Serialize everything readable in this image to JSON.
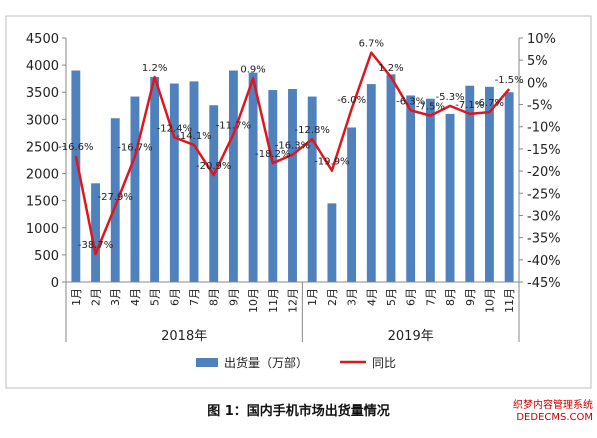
{
  "chart_data": {
    "type": "bar+line",
    "title": "图 1：国内手机市场出货量情况",
    "categories": [
      "1月",
      "2月",
      "3月",
      "4月",
      "5月",
      "6月",
      "7月",
      "8月",
      "9月",
      "10月",
      "11月",
      "12月",
      "1月",
      "2月",
      "3月",
      "4月",
      "5月",
      "6月",
      "7月",
      "8月",
      "9月",
      "10月",
      "11月"
    ],
    "year_groups": [
      {
        "label": "2018年",
        "count": 12
      },
      {
        "label": "2019年",
        "count": 11
      }
    ],
    "series": [
      {
        "name": "出货量（万部）",
        "type": "bar",
        "axis": "left",
        "color": "#4f81bd",
        "values": [
          3900,
          1820,
          3020,
          3420,
          3780,
          3660,
          3700,
          3260,
          3900,
          3860,
          3540,
          3560,
          3420,
          1450,
          2850,
          3650,
          3830,
          3440,
          3380,
          3100,
          3620,
          3600,
          3500
        ]
      },
      {
        "name": "同比",
        "type": "line",
        "axis": "right",
        "color": "#e0161f",
        "values": [
          -16.6,
          -38.7,
          -27.9,
          -16.7,
          1.2,
          -12.4,
          -14.1,
          -20.9,
          -11.7,
          0.9,
          -18.2,
          -16.3,
          -12.8,
          -19.9,
          -6.0,
          6.7,
          1.2,
          -6.3,
          -7.5,
          -5.3,
          -7.1,
          -6.7,
          -1.5
        ],
        "labels": [
          "-16.6%",
          "-38.7%",
          "-27.9%",
          "-16.7%",
          "1.2%",
          "-12.4%",
          "-14.1%",
          "-20.9%",
          "-11.7%",
          "0.9%",
          "-18.2%",
          "-16.3%",
          "-12.8%",
          "-19.9%",
          "-6.0%",
          "6.7%",
          "1.2%",
          "-6.3%",
          "-7.5%",
          "-5.3%",
          "-7.1%",
          "-6.7%",
          "-1.5%"
        ]
      }
    ],
    "left_axis": {
      "min": 0,
      "max": 4500,
      "step": 500,
      "ticks": [
        "0",
        "500",
        "1000",
        "1500",
        "2000",
        "2500",
        "3000",
        "3500",
        "4000",
        "4500"
      ]
    },
    "right_axis": {
      "min": -45,
      "max": 10,
      "step": 5,
      "ticks": [
        "-45%",
        "-40%",
        "-35%",
        "-30%",
        "-25%",
        "-20%",
        "-15%",
        "-10%",
        "-5%",
        "0%",
        "5%",
        "10%"
      ]
    },
    "legend_position": "bottom"
  },
  "watermark_text": "织梦内容管理系统\nDEDECMS.COM",
  "colors": {
    "bar": "#4f81bd",
    "line": "#e0161f",
    "axis": "#888888",
    "frame": "#bfbfbf"
  }
}
